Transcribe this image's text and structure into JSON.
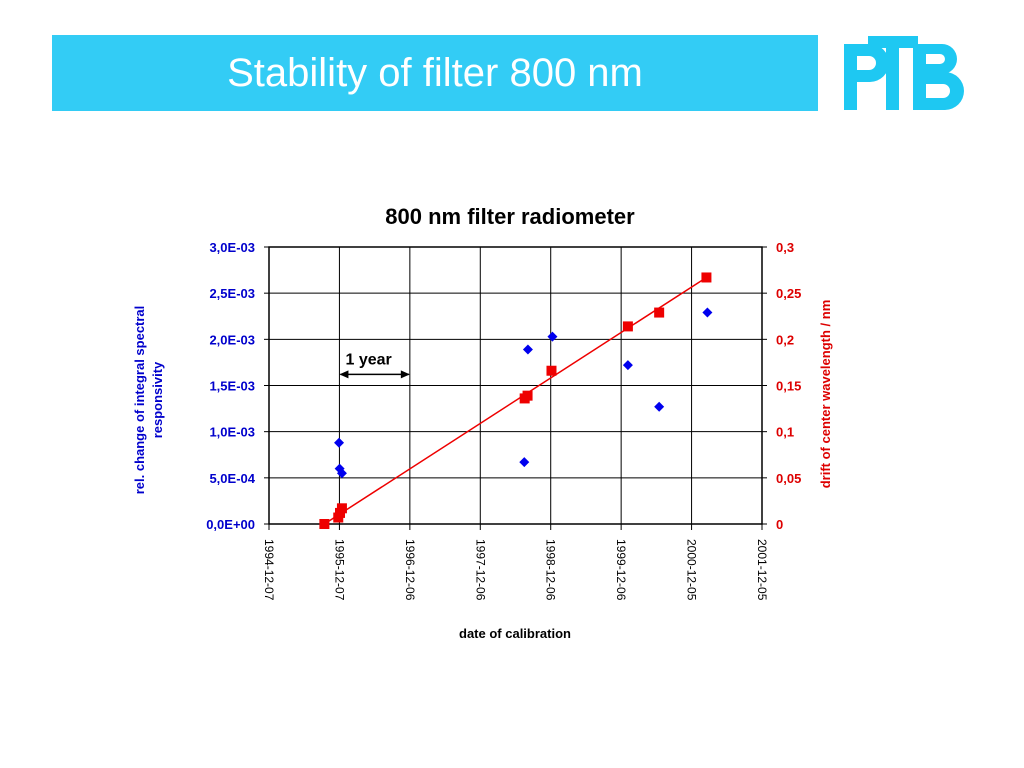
{
  "slide": {
    "title": "Stability of filter 800 nm",
    "logo_text": "PTB"
  },
  "colors": {
    "banner": "#33ccf5",
    "logo": "#1ec8f2",
    "left_series": "#0000ee",
    "right_series": "#ee0000"
  },
  "chart_data": {
    "type": "scatter",
    "title": "800 nm filter radiometer",
    "xlabel": "date of calibration",
    "ylabel_left": [
      "rel. change of integral spectral",
      "responsivity"
    ],
    "ylabel_right": "drift of center wavelength / nm",
    "x_ticks": [
      "1994-12-07",
      "1995-12-07",
      "1996-12-06",
      "1997-12-06",
      "1998-12-06",
      "1999-12-06",
      "2000-12-05",
      "2001-12-05"
    ],
    "xlim": [
      "1994-12-07",
      "2001-12-05"
    ],
    "y_left_ticks": [
      "0,0E+00",
      "5,0E-04",
      "1,0E-03",
      "1,5E-03",
      "2,0E-03",
      "2,5E-03",
      "3,0E-03"
    ],
    "ylim_left": [
      0,
      0.003
    ],
    "y_right_ticks": [
      "0",
      "0,05",
      "0,1",
      "0,15",
      "0,2",
      "0,25",
      "0,3"
    ],
    "ylim_right": [
      0,
      0.3
    ],
    "grid": true,
    "series": [
      {
        "axis": "left",
        "marker": "diamond",
        "points": [
          {
            "x": "1995-12-05",
            "y": 0.00088
          },
          {
            "x": "1995-12-08",
            "y": 0.0006
          },
          {
            "x": "1995-12-20",
            "y": 0.00055
          },
          {
            "x": "1998-07-22",
            "y": 0.00067
          },
          {
            "x": "1998-08-10",
            "y": 0.00189
          },
          {
            "x": "1998-12-15",
            "y": 0.00203
          },
          {
            "x": "2000-01-10",
            "y": 0.00172
          },
          {
            "x": "2000-06-20",
            "y": 0.00127
          },
          {
            "x": "2001-02-25",
            "y": 0.00229
          }
        ]
      },
      {
        "axis": "right",
        "marker": "square",
        "points": [
          {
            "x": "1995-09-20",
            "y": 0.0
          },
          {
            "x": "1995-12-01",
            "y": 0.007
          },
          {
            "x": "1995-12-10",
            "y": 0.012
          },
          {
            "x": "1995-12-20",
            "y": 0.017
          },
          {
            "x": "1998-07-24",
            "y": 0.136
          },
          {
            "x": "1998-08-08",
            "y": 0.139
          },
          {
            "x": "1998-12-10",
            "y": 0.166
          },
          {
            "x": "2000-01-10",
            "y": 0.214
          },
          {
            "x": "2000-06-20",
            "y": 0.229
          },
          {
            "x": "2001-02-20",
            "y": 0.267
          }
        ]
      }
    ],
    "trendline": {
      "axis": "right",
      "from": {
        "x": "1995-09-20",
        "y": 0.0
      },
      "to": {
        "x": "2001-02-20",
        "y": 0.267
      }
    },
    "annotation": {
      "text": "1 year",
      "from": "1995-12-07",
      "to": "1996-12-06",
      "y_left": 0.00162
    }
  }
}
